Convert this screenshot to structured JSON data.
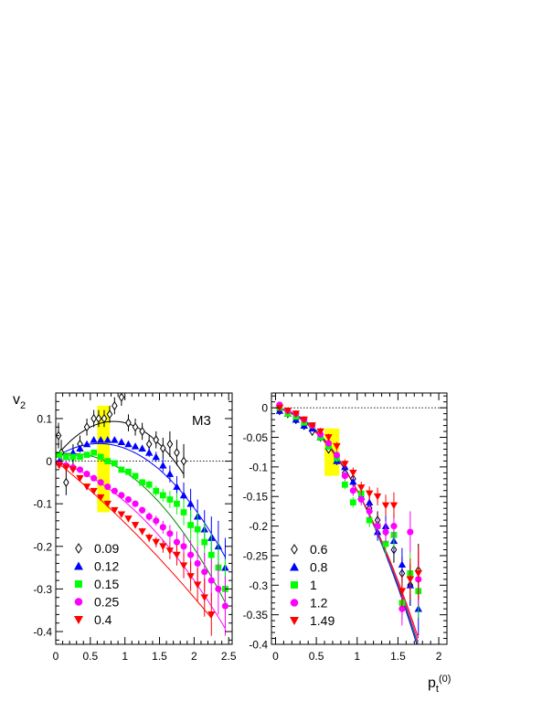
{
  "figure": {
    "ylabel": "v",
    "ylabel_sub": "2",
    "xlabel": "p",
    "xlabel_sub": "t",
    "xlabel_sup": "(0)"
  },
  "chart_data": [
    {
      "type": "scatter",
      "panel": "left",
      "tag": "M3",
      "xlim": [
        0,
        2.55
      ],
      "ylim": [
        -0.43,
        0.16
      ],
      "xticks": [
        0,
        0.5,
        1,
        1.5,
        2,
        2.5
      ],
      "xtick_labels": [
        "0",
        "0.5",
        "1",
        "1.5",
        "2",
        "2.5"
      ],
      "yticks": [
        -0.4,
        -0.3,
        -0.2,
        -0.1,
        0,
        0.1
      ],
      "ytick_labels": [
        "-0.4",
        "-0.3",
        "-0.2",
        "-0.1",
        "0",
        "0.1"
      ],
      "zero_line": true,
      "highlight_band": {
        "x": [
          0.6,
          0.78
        ],
        "y": [
          -0.12,
          0.13
        ],
        "color": "#ffff00"
      },
      "legend_position": "bottom-left",
      "series": [
        {
          "name": "0.09",
          "marker": "diamond-open",
          "color": "#000000",
          "fit": [
            0.01,
            0.2,
            -0.12
          ],
          "x": [
            0.04,
            0.08,
            0.15,
            0.25,
            0.35,
            0.45,
            0.55,
            0.62,
            0.7,
            0.78,
            0.85,
            0.95,
            1.05,
            1.15,
            1.25,
            1.35,
            1.45,
            1.55,
            1.65,
            1.75,
            1.85
          ],
          "y": [
            0.06,
            0.02,
            -0.05,
            0.01,
            0.04,
            0.08,
            0.1,
            0.1,
            0.1,
            0.11,
            0.13,
            0.15,
            0.09,
            0.08,
            0.07,
            0.04,
            0.05,
            0.03,
            0.04,
            0.02,
            0.0
          ],
          "err": [
            0.03,
            0.03,
            0.03,
            0.03,
            0.02,
            0.02,
            0.02,
            0.02,
            0.02,
            0.02,
            0.02,
            0.02,
            0.02,
            0.02,
            0.02,
            0.02,
            0.02,
            0.025,
            0.03,
            0.03,
            0.04
          ]
        },
        {
          "name": "0.12",
          "marker": "triangle-up",
          "color": "#0000ff",
          "fit": [
            0.01,
            0.1,
            -0.08
          ],
          "x": [
            0.05,
            0.15,
            0.25,
            0.35,
            0.45,
            0.55,
            0.65,
            0.75,
            0.85,
            0.95,
            1.05,
            1.15,
            1.25,
            1.35,
            1.45,
            1.55,
            1.65,
            1.75,
            1.85,
            1.95,
            2.05,
            2.15,
            2.25,
            2.35,
            2.45
          ],
          "y": [
            0.0,
            0.01,
            0.02,
            0.03,
            0.04,
            0.05,
            0.05,
            0.05,
            0.05,
            0.045,
            0.04,
            0.035,
            0.03,
            0.02,
            0.01,
            -0.01,
            -0.03,
            -0.06,
            -0.08,
            -0.1,
            -0.13,
            -0.16,
            -0.18,
            -0.2,
            -0.25
          ],
          "err": [
            0.005,
            0.005,
            0.005,
            0.005,
            0.005,
            0.005,
            0.005,
            0.005,
            0.005,
            0.006,
            0.006,
            0.007,
            0.008,
            0.01,
            0.012,
            0.015,
            0.02,
            0.025,
            0.03,
            0.035,
            0.04,
            0.045,
            0.05,
            0.06,
            0.07
          ]
        },
        {
          "name": "0.15",
          "marker": "square",
          "color": "#00ff00",
          "fit": [
            0.015,
            0.03,
            -0.07
          ],
          "x": [
            0.05,
            0.15,
            0.25,
            0.35,
            0.45,
            0.55,
            0.65,
            0.75,
            0.85,
            0.95,
            1.05,
            1.15,
            1.25,
            1.35,
            1.45,
            1.55,
            1.65,
            1.75,
            1.85,
            1.95,
            2.05,
            2.15,
            2.25,
            2.35,
            2.45
          ],
          "y": [
            0.015,
            0.01,
            0.01,
            0.01,
            0.015,
            0.02,
            0.01,
            0.0,
            -0.005,
            -0.02,
            -0.025,
            -0.035,
            -0.05,
            -0.055,
            -0.07,
            -0.08,
            -0.09,
            -0.1,
            -0.12,
            -0.15,
            -0.16,
            -0.19,
            -0.22,
            -0.25,
            -0.3
          ],
          "err": [
            0.005,
            0.005,
            0.005,
            0.005,
            0.005,
            0.005,
            0.005,
            0.005,
            0.005,
            0.006,
            0.006,
            0.007,
            0.008,
            0.01,
            0.012,
            0.015,
            0.02,
            0.025,
            0.03,
            0.035,
            0.04,
            0.045,
            0.05,
            0.06,
            0.07
          ]
        },
        {
          "name": "0.25",
          "marker": "circle",
          "color": "#ff00ff",
          "fit": [
            0.0,
            -0.05,
            -0.045
          ],
          "x": [
            0.05,
            0.15,
            0.25,
            0.35,
            0.45,
            0.55,
            0.65,
            0.75,
            0.85,
            0.95,
            1.05,
            1.15,
            1.25,
            1.35,
            1.45,
            1.55,
            1.65,
            1.75,
            1.85,
            1.95,
            2.05,
            2.15,
            2.25,
            2.35,
            2.45
          ],
          "y": [
            -0.005,
            -0.01,
            -0.015,
            -0.02,
            -0.03,
            -0.04,
            -0.05,
            -0.06,
            -0.07,
            -0.08,
            -0.09,
            -0.1,
            -0.115,
            -0.13,
            -0.14,
            -0.155,
            -0.17,
            -0.19,
            -0.2,
            -0.22,
            -0.24,
            -0.26,
            -0.28,
            -0.3,
            -0.34
          ],
          "err": [
            0.005,
            0.005,
            0.005,
            0.005,
            0.005,
            0.005,
            0.005,
            0.005,
            0.005,
            0.006,
            0.006,
            0.007,
            0.008,
            0.01,
            0.012,
            0.015,
            0.02,
            0.025,
            0.03,
            0.035,
            0.04,
            0.045,
            0.05,
            0.06,
            0.07
          ]
        },
        {
          "name": "0.4",
          "marker": "triangle-down",
          "color": "#ff0000",
          "fit": [
            0.0,
            -0.13,
            -0.015
          ],
          "x": [
            0.05,
            0.15,
            0.25,
            0.35,
            0.45,
            0.55,
            0.65,
            0.75,
            0.85,
            0.95,
            1.05,
            1.15,
            1.25,
            1.35,
            1.45,
            1.55,
            1.65,
            1.75,
            1.85,
            1.95,
            2.05,
            2.15,
            2.25
          ],
          "y": [
            -0.01,
            -0.015,
            -0.02,
            -0.04,
            -0.06,
            -0.07,
            -0.085,
            -0.1,
            -0.115,
            -0.125,
            -0.135,
            -0.15,
            -0.165,
            -0.18,
            -0.19,
            -0.2,
            -0.21,
            -0.22,
            -0.245,
            -0.27,
            -0.29,
            -0.32,
            -0.36
          ],
          "err": [
            0.005,
            0.005,
            0.005,
            0.005,
            0.005,
            0.005,
            0.005,
            0.005,
            0.005,
            0.006,
            0.006,
            0.007,
            0.008,
            0.01,
            0.012,
            0.015,
            0.02,
            0.025,
            0.03,
            0.035,
            0.04,
            0.045,
            0.05
          ]
        }
      ]
    },
    {
      "type": "scatter",
      "panel": "right",
      "xlim": [
        -0.05,
        2.1
      ],
      "ylim": [
        -0.4,
        0.025
      ],
      "xticks": [
        0,
        0.5,
        1,
        1.5,
        2
      ],
      "xtick_labels": [
        "0",
        "0.5",
        "1",
        "1.5",
        "2"
      ],
      "yticks": [
        -0.4,
        -0.35,
        -0.3,
        -0.25,
        -0.2,
        -0.15,
        -0.1,
        -0.05,
        0
      ],
      "ytick_labels": [
        "-0.4",
        "-0.35",
        "-0.3",
        "-0.25",
        "-0.2",
        "-0.15",
        "-0.1",
        "-0.05",
        "0"
      ],
      "zero_line": true,
      "highlight_band": {
        "x": [
          0.6,
          0.78
        ],
        "y": [
          -0.115,
          -0.035
        ],
        "color": "#ffff00"
      },
      "legend_position": "bottom-left",
      "series": [
        {
          "name": "0.6",
          "marker": "diamond-open",
          "color": "#000000",
          "fit": [
            0.0,
            -0.02,
            -0.12
          ],
          "x": [
            0.05,
            0.15,
            0.25,
            0.35,
            0.45,
            0.55,
            0.65,
            0.75,
            0.85,
            0.95,
            1.05,
            1.15,
            1.25,
            1.35,
            1.45,
            1.55,
            1.65,
            1.75
          ],
          "y": [
            -0.005,
            -0.01,
            -0.02,
            -0.03,
            -0.04,
            -0.05,
            -0.07,
            -0.085,
            -0.11,
            -0.12,
            -0.15,
            -0.17,
            -0.19,
            -0.21,
            -0.24,
            -0.28,
            -0.3,
            -0.275
          ],
          "err": [
            0.004,
            0.004,
            0.005,
            0.005,
            0.005,
            0.006,
            0.006,
            0.007,
            0.008,
            0.009,
            0.01,
            0.012,
            0.015,
            0.018,
            0.022,
            0.028,
            0.035,
            0.045
          ]
        },
        {
          "name": "0.8",
          "marker": "triangle-up",
          "color": "#0000ff",
          "fit": [
            0.0,
            -0.015,
            -0.125
          ],
          "x": [
            0.05,
            0.15,
            0.25,
            0.35,
            0.45,
            0.55,
            0.65,
            0.75,
            0.85,
            0.95,
            1.05,
            1.15,
            1.25,
            1.35,
            1.45,
            1.55,
            1.65,
            1.75
          ],
          "y": [
            -0.005,
            -0.01,
            -0.02,
            -0.03,
            -0.035,
            -0.05,
            -0.065,
            -0.09,
            -0.1,
            -0.125,
            -0.15,
            -0.16,
            -0.21,
            -0.2,
            -0.225,
            -0.265,
            -0.3,
            -0.34
          ],
          "err": [
            0.004,
            0.004,
            0.005,
            0.005,
            0.005,
            0.006,
            0.006,
            0.007,
            0.008,
            0.009,
            0.01,
            0.012,
            0.015,
            0.018,
            0.022,
            0.028,
            0.035,
            0.045
          ]
        },
        {
          "name": "1",
          "marker": "square",
          "color": "#00ff00",
          "fit": [
            0.0,
            -0.02,
            -0.12
          ],
          "x": [
            0.05,
            0.15,
            0.25,
            0.35,
            0.45,
            0.55,
            0.65,
            0.75,
            0.85,
            0.95,
            1.05,
            1.15,
            1.25,
            1.35,
            1.45,
            1.55,
            1.65,
            1.75
          ],
          "y": [
            0.0,
            -0.01,
            -0.015,
            -0.025,
            -0.03,
            -0.05,
            -0.065,
            -0.085,
            -0.13,
            -0.16,
            -0.145,
            -0.19,
            -0.2,
            -0.23,
            -0.215,
            -0.33,
            -0.28,
            -0.31
          ],
          "err": [
            0.004,
            0.004,
            0.005,
            0.005,
            0.005,
            0.006,
            0.006,
            0.007,
            0.008,
            0.009,
            0.01,
            0.012,
            0.015,
            0.018,
            0.022,
            0.028,
            0.035,
            0.045
          ]
        },
        {
          "name": "1.2",
          "marker": "circle",
          "color": "#ff00ff",
          "fit": [
            0.0,
            -0.025,
            -0.115
          ],
          "x": [
            0.05,
            0.15,
            0.25,
            0.35,
            0.45,
            0.55,
            0.65,
            0.75,
            0.85,
            0.95,
            1.05,
            1.15,
            1.25,
            1.35,
            1.45,
            1.55,
            1.65,
            1.75
          ],
          "y": [
            0.005,
            -0.005,
            -0.01,
            -0.02,
            -0.03,
            -0.045,
            -0.06,
            -0.08,
            -0.115,
            -0.14,
            -0.155,
            -0.175,
            -0.2,
            -0.21,
            -0.2,
            -0.34,
            -0.21,
            -0.29
          ],
          "err": [
            0.004,
            0.004,
            0.005,
            0.005,
            0.005,
            0.006,
            0.006,
            0.007,
            0.008,
            0.009,
            0.01,
            0.012,
            0.015,
            0.018,
            0.022,
            0.028,
            0.035,
            0.045
          ]
        },
        {
          "name": "1.49",
          "marker": "triangle-down",
          "color": "#ff0000",
          "fit": [
            0.0,
            -0.03,
            -0.11
          ],
          "x": [
            0.05,
            0.15,
            0.25,
            0.35,
            0.45,
            0.55,
            0.65,
            0.75,
            0.85,
            0.95,
            1.05,
            1.15,
            1.25,
            1.35,
            1.45,
            1.55,
            1.65,
            1.75
          ],
          "y": [
            0.0,
            -0.005,
            -0.01,
            -0.02,
            -0.03,
            -0.04,
            -0.05,
            -0.065,
            -0.095,
            -0.11,
            -0.135,
            -0.145,
            -0.15,
            -0.165,
            -0.165,
            -0.31,
            -0.29,
            -0.28
          ],
          "err": [
            0.004,
            0.004,
            0.005,
            0.005,
            0.005,
            0.006,
            0.006,
            0.007,
            0.008,
            0.009,
            0.01,
            0.012,
            0.015,
            0.018,
            0.022,
            0.028,
            0.035,
            0.045
          ]
        }
      ]
    }
  ]
}
